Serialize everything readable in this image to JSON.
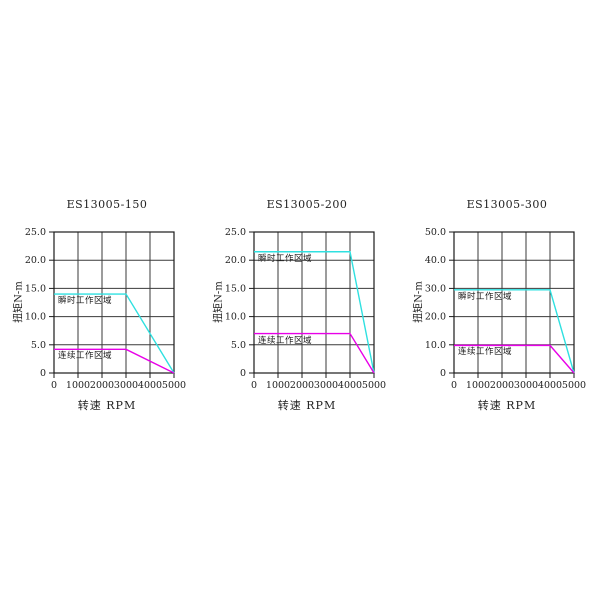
{
  "page": {
    "background": "#ffffff"
  },
  "colors": {
    "instantaneous_line": "#2fe0e0",
    "continuous_line": "#e800e8",
    "grid": "#3a3a3a",
    "axis": "#1a1a1a",
    "text": "#222222"
  },
  "chart_data": [
    {
      "type": "line",
      "title": "ES13005-150",
      "xlabel": "转速 RPM",
      "ylabel": "扭矩N-m",
      "xlim": [
        0,
        5000
      ],
      "ylim": [
        0,
        25
      ],
      "grid": true,
      "legend_position": "inline-labels",
      "xticks": [
        0,
        1000,
        2000,
        3000,
        4000,
        5000
      ],
      "xtick_labels": [
        "0",
        "1000",
        "2000",
        "3000",
        "4000",
        "5000"
      ],
      "yticks": [
        0,
        5,
        10,
        15,
        20,
        25
      ],
      "ytick_labels": [
        "0",
        "5.0",
        "10.0",
        "15.0",
        "20.0",
        "25.0"
      ],
      "series": [
        {
          "name": "瞬时工作区域",
          "color": "#2fe0e0",
          "x": [
            0,
            3000,
            5000
          ],
          "y": [
            14,
            14,
            0
          ]
        },
        {
          "name": "连续工作区域",
          "color": "#e800e8",
          "x": [
            0,
            3000,
            5000
          ],
          "y": [
            4.2,
            4.2,
            0
          ]
        }
      ]
    },
    {
      "type": "line",
      "title": "ES13005-200",
      "xlabel": "转速 RPM",
      "ylabel": "扭矩N-m",
      "xlim": [
        0,
        5000
      ],
      "ylim": [
        0,
        25
      ],
      "grid": true,
      "legend_position": "inline-labels",
      "xticks": [
        0,
        1000,
        2000,
        3000,
        4000,
        5000
      ],
      "xtick_labels": [
        "0",
        "1000",
        "2000",
        "3000",
        "4000",
        "5000"
      ],
      "yticks": [
        0,
        5,
        10,
        15,
        20,
        25
      ],
      "ytick_labels": [
        "0",
        "5.0",
        "10.0",
        "15.0",
        "20.0",
        "25.0"
      ],
      "series": [
        {
          "name": "瞬时工作区域",
          "color": "#2fe0e0",
          "x": [
            0,
            4000,
            5000
          ],
          "y": [
            21.5,
            21.5,
            0
          ]
        },
        {
          "name": "连续工作区域",
          "color": "#e800e8",
          "x": [
            0,
            4000,
            5000
          ],
          "y": [
            7,
            7,
            0
          ]
        }
      ]
    },
    {
      "type": "line",
      "title": "ES13005-300",
      "xlabel": "转速 RPM",
      "ylabel": "扭矩N-m",
      "xlim": [
        0,
        5000
      ],
      "ylim": [
        0,
        50
      ],
      "grid": true,
      "legend_position": "inline-labels",
      "xticks": [
        0,
        1000,
        2000,
        3000,
        4000,
        5000
      ],
      "xtick_labels": [
        "0",
        "1000",
        "2000",
        "3000",
        "4000",
        "5000"
      ],
      "yticks": [
        0,
        10,
        20,
        30,
        40,
        50
      ],
      "ytick_labels": [
        "0",
        "10.0",
        "20.0",
        "30.0",
        "40.0",
        "50.0"
      ],
      "series": [
        {
          "name": "瞬时工作区域",
          "color": "#2fe0e0",
          "x": [
            0,
            4000,
            5000
          ],
          "y": [
            29.5,
            29.5,
            0
          ]
        },
        {
          "name": "连续工作区域",
          "color": "#e800e8",
          "x": [
            0,
            4000,
            5000
          ],
          "y": [
            9.8,
            9.8,
            0
          ]
        }
      ]
    }
  ]
}
